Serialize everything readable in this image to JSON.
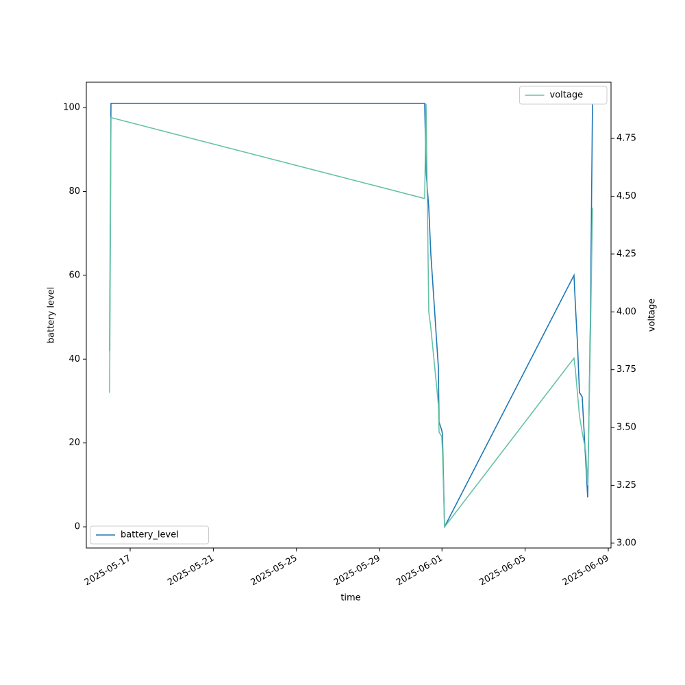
{
  "chart_data": {
    "type": "line",
    "xlabel": "time",
    "ylabel": "battery level",
    "y2label": "voltage",
    "x": [
      "2025-05-16T00:17",
      "2025-05-16T01:51",
      "2025-05-31T04:02",
      "2025-05-31T05:37",
      "2025-05-31T08:47",
      "2025-05-31T11:10",
      "2025-05-31T19:51",
      "2025-05-31T20:38",
      "2025-05-31T23:48",
      "2025-06-01T00:36",
      "2025-06-01T02:59",
      "2025-06-07T08:25",
      "2025-06-07T10:00",
      "2025-06-07T12:23",
      "2025-06-07T14:45",
      "2025-06-07T17:54",
      "2025-06-07T21:52",
      "2025-06-08T00:14",
      "2025-06-08T03:24",
      "2025-06-08T05:47"
    ],
    "series": [
      {
        "name": "battery_level",
        "color": "#1f77b4",
        "values": [
          42,
          101,
          101,
          85,
          76,
          65,
          38,
          25,
          23,
          22,
          0,
          60,
          53,
          44,
          32,
          31,
          16,
          7,
          50,
          101
        ]
      },
      {
        "name": "voltage",
        "color": "#66c2a5",
        "axis": "y2",
        "values": [
          3.65,
          4.84,
          4.49,
          4.9,
          4.0,
          3.93,
          3.6,
          3.48,
          3.46,
          3.4,
          3.07,
          3.8,
          3.75,
          3.65,
          3.55,
          3.48,
          3.4,
          3.25,
          3.9,
          4.45
        ]
      }
    ],
    "xlim": [
      "2025-05-14T21:23",
      "2025-06-09T03:10"
    ],
    "xticks": [
      "2025-05-17",
      "2025-05-21",
      "2025-05-25",
      "2025-05-29",
      "2025-06-01",
      "2025-06-05",
      "2025-06-09"
    ],
    "ylim": [
      -5.05,
      106.05
    ],
    "yticks": [
      0,
      20,
      40,
      60,
      80,
      100
    ],
    "y2lim": [
      2.979,
      4.993
    ],
    "y2ticks": [
      {
        "value": 3,
        "label": "3.00"
      },
      {
        "value": 3.25,
        "label": "3.25"
      },
      {
        "value": 3.5,
        "label": "3.50"
      },
      {
        "value": 3.75,
        "label": "3.75"
      },
      {
        "value": 4,
        "label": "4.00"
      },
      {
        "value": 4.25,
        "label": "4.25"
      },
      {
        "value": 4.5,
        "label": "4.50"
      },
      {
        "value": 4.75,
        "label": "4.75"
      }
    ],
    "legend": {
      "y": "lower left",
      "y2": "upper right"
    }
  }
}
